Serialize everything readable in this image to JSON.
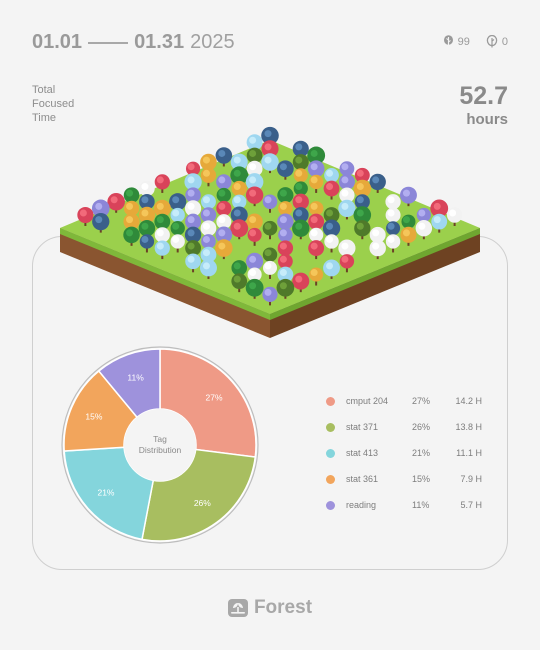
{
  "header": {
    "date_start": "01.01",
    "date_end": "01.31",
    "year": "2025",
    "trees_count": "99",
    "dead_count": "0",
    "trees_icon": "tree-leaf-icon",
    "dead_icon": "dead-tree-icon"
  },
  "focus": {
    "label": "Total Focused Time",
    "value": "52.7",
    "unit": "hours"
  },
  "donut": {
    "center_line1": "Tag",
    "center_line2": "Distribution"
  },
  "chart_data": {
    "type": "pie",
    "categories": [
      "cmput 204",
      "stat 371",
      "stat 413",
      "stat 361",
      "reading"
    ],
    "values": [
      27,
      26,
      21,
      15,
      11
    ],
    "hours": [
      14.2,
      13.8,
      11.1,
      7.9,
      5.7
    ],
    "colors": [
      "#ef9a86",
      "#a8be60",
      "#84d5dc",
      "#f2a55c",
      "#9e92dc"
    ],
    "center_text": "Tag Distribution"
  },
  "legend": [
    {
      "name": "cmput 204",
      "pct": "27%",
      "hours": "14.2 H",
      "color": "#ef9a86"
    },
    {
      "name": "stat 371",
      "pct": "26%",
      "hours": "13.8 H",
      "color": "#a8be60"
    },
    {
      "name": "stat 413",
      "pct": "21%",
      "hours": "11.1 H",
      "color": "#84d5dc"
    },
    {
      "name": "stat 361",
      "pct": "15%",
      "hours": "7.9 H",
      "color": "#f2a55c"
    },
    {
      "name": "reading",
      "pct": "11%",
      "hours": "5.7 H",
      "color": "#9e92dc"
    }
  ],
  "garden": {
    "icon": "forest-garden-illustration",
    "grass_color": "#9bd04c",
    "soil_color": "#7a4a2a"
  },
  "footer": {
    "brand": "Forest",
    "icon": "forest-logo-icon"
  }
}
